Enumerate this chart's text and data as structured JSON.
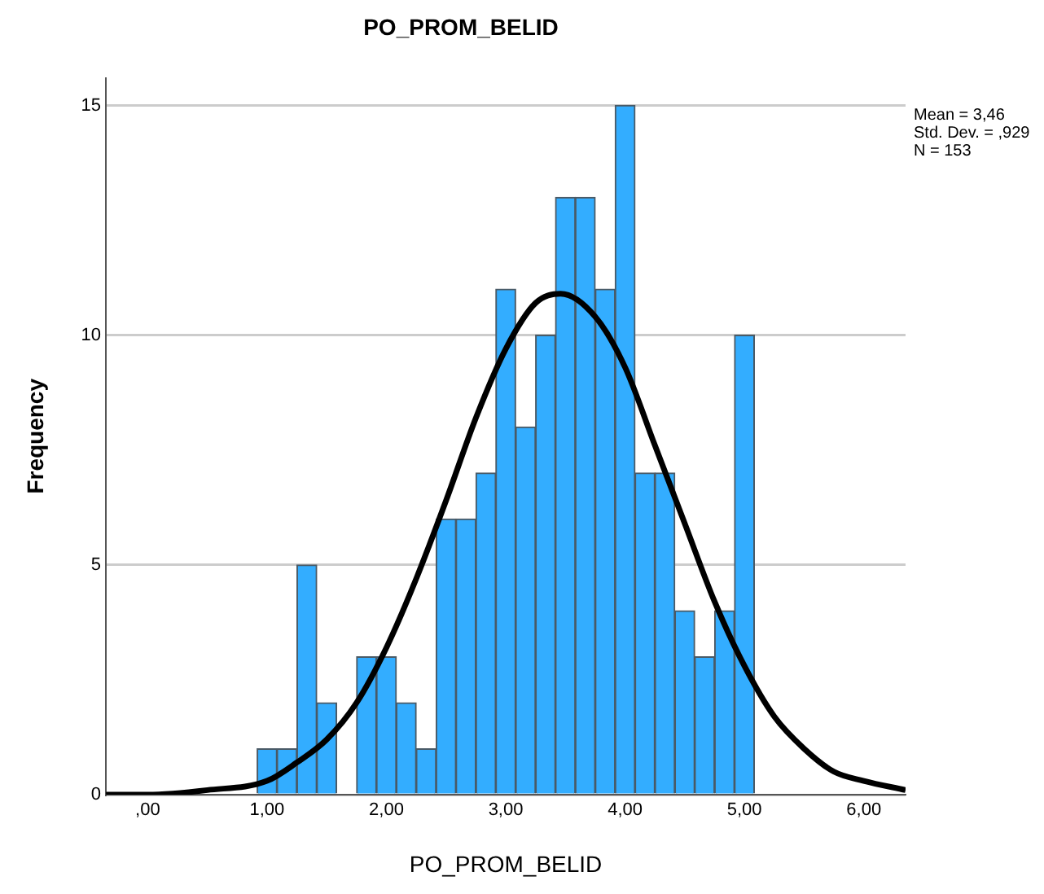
{
  "chart_data": {
    "type": "histogram",
    "title": "PO_PROM_BELID",
    "xlabel": "PO_PROM_BELID",
    "ylabel": "Frequency",
    "bins": [
      0.917,
      1.083,
      1.25,
      1.417,
      1.583,
      1.75,
      1.917,
      2.083,
      2.25,
      2.417,
      2.583,
      2.75,
      2.917,
      3.083,
      3.25,
      3.417,
      3.583,
      3.75,
      3.917,
      4.083,
      4.25,
      4.417,
      4.583,
      4.75,
      4.917,
      5.083
    ],
    "values": [
      1,
      1,
      5,
      2,
      0,
      3,
      3,
      2,
      1,
      6,
      6,
      7,
      11,
      8,
      10,
      13,
      13,
      11,
      15,
      7,
      7,
      4,
      3,
      4,
      10
    ],
    "color": "#33adff",
    "series": [
      {
        "type": "line",
        "color": "#000000",
        "marker": "none",
        "x": [
          -0.35,
          0,
          0.5,
          1,
          1.25,
          1.5,
          1.75,
          2,
          2.25,
          2.5,
          2.75,
          3,
          3.25,
          3.46,
          3.75,
          4,
          4.25,
          4.5,
          4.75,
          5,
          5.25,
          5.5,
          5.75,
          6,
          6.35
        ],
        "values": [
          0,
          0,
          0.1,
          0.3,
          0.7,
          1.2,
          2,
          3.2,
          4.7,
          6.4,
          8.2,
          9.7,
          10.7,
          10.9,
          10.4,
          9.3,
          7.6,
          5.9,
          4.2,
          2.8,
          1.7,
          1,
          0.5,
          0.3,
          0.1
        ]
      }
    ],
    "xlim": [
      -0.35,
      6.35
    ],
    "xticks": [
      {
        "value": 0,
        "label": ",00"
      },
      {
        "value": 1,
        "label": "1,00"
      },
      {
        "value": 2,
        "label": "2,00"
      },
      {
        "value": 3,
        "label": "3,00"
      },
      {
        "value": 4,
        "label": "4,00"
      },
      {
        "value": 5,
        "label": "5,00"
      },
      {
        "value": 6,
        "label": "6,00"
      }
    ],
    "ylim": [
      0,
      15.6
    ],
    "yticks": [
      0,
      5,
      10,
      15
    ],
    "grid": "y",
    "legend": false,
    "annotations": [
      "Mean = 3,46",
      "Std. Dev. = ,929",
      "N = 153"
    ]
  }
}
